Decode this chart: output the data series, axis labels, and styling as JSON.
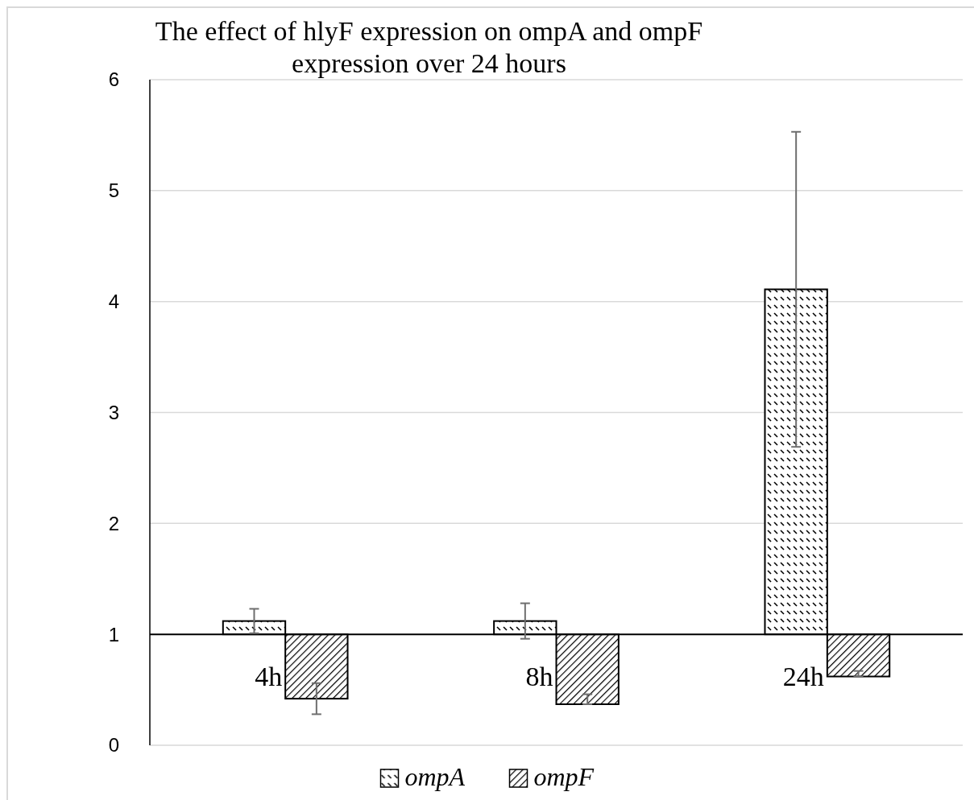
{
  "chart_data": {
    "type": "bar",
    "title": "The effect of hlyF expression on ompA and ompF expression over 24 hours",
    "categories": [
      "4h",
      "8h",
      "24h"
    ],
    "series": [
      {
        "name": "ompA",
        "color": "#000000",
        "base": [
          1,
          1,
          1
        ],
        "values": [
          0.12,
          0.12,
          3.11
        ],
        "errors": [
          0.11,
          0.16,
          1.42
        ]
      },
      {
        "name": "ompF",
        "color": "#000000",
        "base": [
          1,
          1,
          1
        ],
        "values": [
          -0.58,
          -0.63,
          -0.38
        ],
        "errors": [
          0.14,
          [
            0.37,
            0.46
          ],
          [
            0.62,
            0.67
          ]
        ]
      }
    ],
    "ylim": [
      0,
      6
    ],
    "yticks": [
      0,
      1,
      2,
      3,
      4,
      5,
      6
    ],
    "grid": "y",
    "legend": "bottom"
  }
}
